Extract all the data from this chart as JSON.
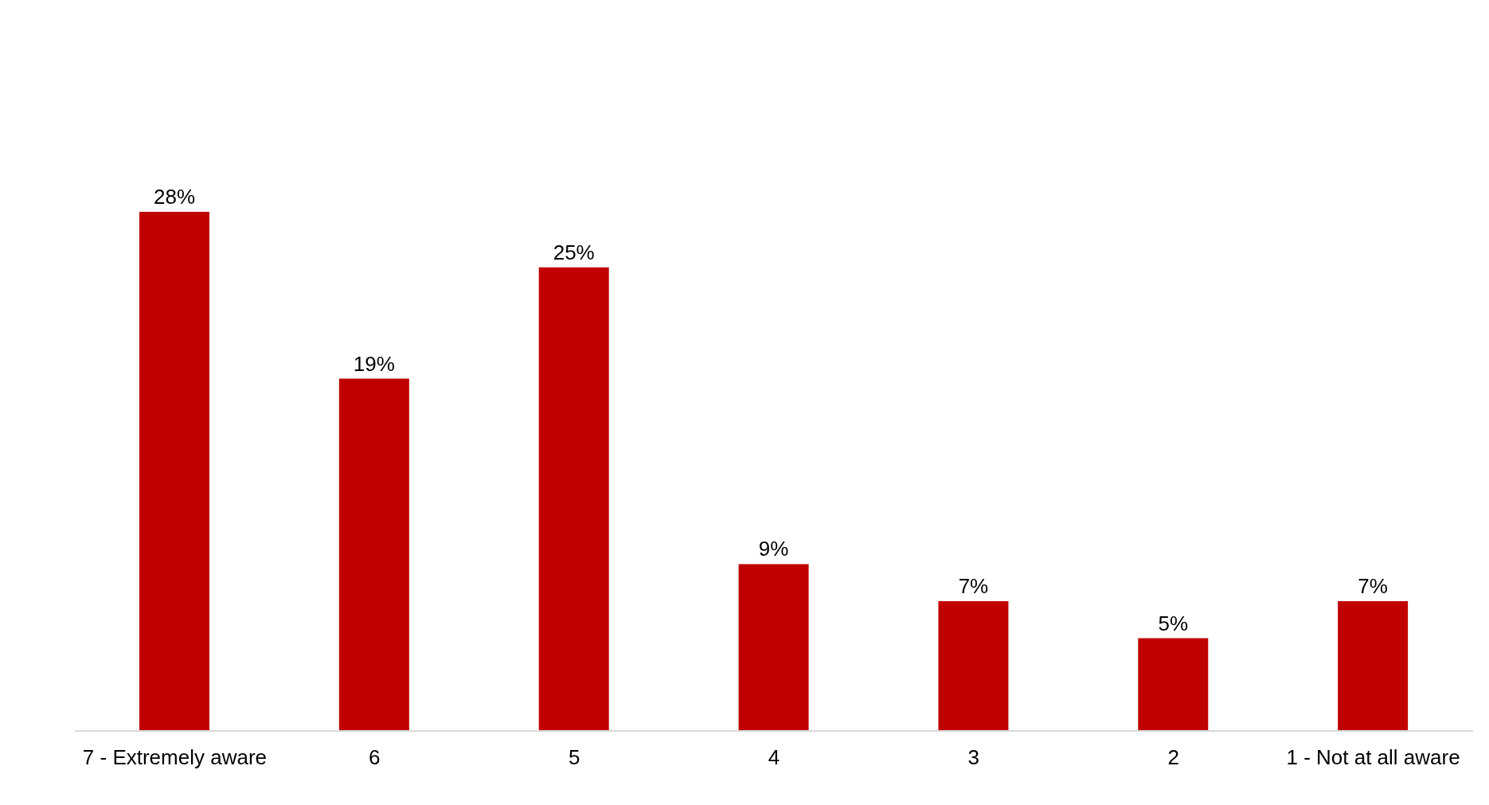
{
  "chart_data": {
    "type": "bar",
    "categories": [
      "7 - Extremely aware",
      "6",
      "5",
      "4",
      "3",
      "2",
      "1 - Not at all aware"
    ],
    "values": [
      28,
      19,
      25,
      9,
      7,
      5,
      7
    ],
    "value_labels": [
      "28%",
      "19%",
      "25%",
      "9%",
      "7%",
      "5%",
      "7%"
    ],
    "color": "#c00000"
  }
}
